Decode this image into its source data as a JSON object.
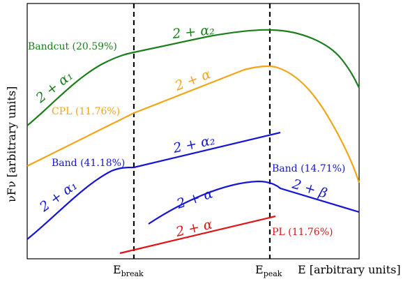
{
  "figure": {
    "ylabel": "νFν [arbitrary units]",
    "xlabel": "E [arbitrary units]",
    "tick_break": "E",
    "tick_break_sub": "break",
    "tick_peak": "E",
    "tick_peak_sub": "peak"
  },
  "curves": [
    {
      "id": "bandcut",
      "label": "Bandcut (20.59%)",
      "color": "#1a7f1a",
      "segments": [
        "2 + α₁",
        "2 + α₂"
      ]
    },
    {
      "id": "cpl",
      "label": "CPL (11.76%)",
      "color": "#f2a516",
      "segments": [
        "2 + α"
      ]
    },
    {
      "id": "band_break",
      "label": "Band (41.18%)",
      "color": "#1414d6",
      "segments": [
        "2 + α₁",
        "2 + α₂"
      ]
    },
    {
      "id": "band",
      "label": "Band (14.71%)",
      "color": "#1414d6",
      "segments": [
        "2 + α",
        "2 + β"
      ]
    },
    {
      "id": "pl",
      "label": "PL (11.76%)",
      "color": "#e01414",
      "segments": [
        "2 + α"
      ]
    }
  ]
}
